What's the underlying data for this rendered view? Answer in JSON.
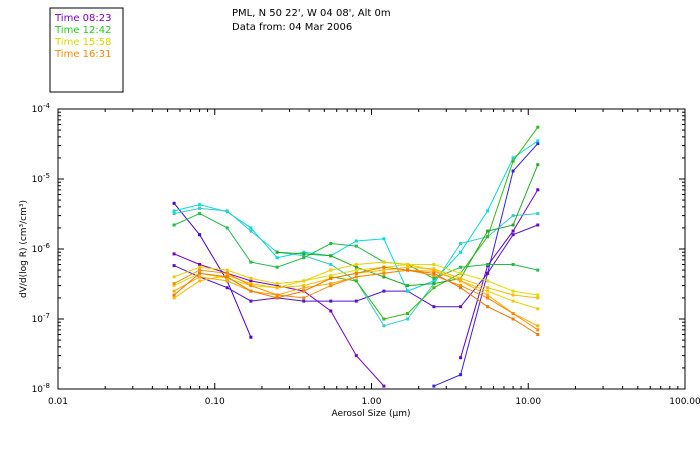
{
  "header": {
    "location": "PML, N 50 22', W 04 08', Alt 0m",
    "date": "Data from: 04 Mar 2006"
  },
  "legend": [
    {
      "label": "Time 08:23",
      "color": "#7a00d0"
    },
    {
      "label": "Time 12:42",
      "color": "#22cc22"
    },
    {
      "label": "Time 15:58",
      "color": "#d8d800"
    },
    {
      "label": "Time 16:31",
      "color": "#ff8800"
    }
  ],
  "chart_data": {
    "type": "line",
    "title": "",
    "xlabel": "Aerosol Size (µm)",
    "ylabel": "dV/d(log R) (cm³/cm³)",
    "x_scale": "log",
    "y_scale": "log",
    "xlim": [
      0.01,
      100
    ],
    "ylim": [
      1e-08,
      0.0001
    ],
    "x_tick_labels": [
      "0.01",
      "0.10",
      "1.00",
      "10.00",
      "100.00"
    ],
    "y_tick_labels": [
      {
        "base": "10",
        "exp": "-8"
      },
      {
        "base": "10",
        "exp": "-7"
      },
      {
        "base": "10",
        "exp": "-6"
      },
      {
        "base": "10",
        "exp": "-5"
      },
      {
        "base": "10",
        "exp": "-4"
      }
    ],
    "x": [
      0.055,
      0.08,
      0.12,
      0.17,
      0.25,
      0.37,
      0.55,
      0.8,
      1.2,
      1.7,
      2.5,
      3.7,
      5.5,
      8.0,
      11.5
    ],
    "series": [
      {
        "name": "s1",
        "color": "#4400cc",
        "values": [
          4.5e-06,
          1.6e-06,
          3.5e-07,
          5.5e-08,
          null,
          null,
          null,
          null,
          null,
          null,
          null,
          null,
          null,
          null,
          null
        ]
      },
      {
        "name": "s2",
        "color": "#3322dd",
        "values": [
          null,
          null,
          null,
          null,
          null,
          null,
          null,
          null,
          null,
          null,
          1.1e-08,
          1.6e-08,
          4.5e-07,
          1.3e-05,
          3.2e-05
        ]
      },
      {
        "name": "s3",
        "color": "#5511cc",
        "values": [
          5.8e-07,
          4e-07,
          2.8e-07,
          1.8e-07,
          2e-07,
          1.8e-07,
          1.8e-07,
          1.8e-07,
          2.5e-07,
          2.5e-07,
          1.5e-07,
          1.5e-07,
          4.5e-07,
          1.6e-06,
          2.2e-06
        ]
      },
      {
        "name": "s4",
        "color": "#7700bb",
        "values": [
          8.5e-07,
          6e-07,
          4.5e-07,
          3.5e-07,
          3e-07,
          2.5e-07,
          1.3e-07,
          3e-08,
          1.1e-08,
          null,
          null,
          null,
          null,
          null,
          null
        ]
      },
      {
        "name": "s5",
        "color": "#6600cc",
        "values": [
          null,
          null,
          null,
          null,
          null,
          null,
          null,
          null,
          null,
          null,
          null,
          2.8e-08,
          5.8e-07,
          1.8e-06,
          7e-06
        ]
      },
      {
        "name": "s6",
        "color": "#00dddd",
        "values": [
          3.5e-06,
          4.3e-06,
          3.4e-06,
          2e-06,
          7.5e-07,
          9e-07,
          8e-07,
          1.3e-06,
          1.4e-06,
          2.5e-07,
          3.5e-07,
          9e-07,
          3.5e-06,
          2e-05,
          3.5e-05
        ]
      },
      {
        "name": "s7",
        "color": "#33cccc",
        "values": [
          3.2e-06,
          3.8e-06,
          3.5e-06,
          1.8e-06,
          9e-07,
          8e-07,
          6e-07,
          3.5e-07,
          8e-08,
          1e-07,
          3.2e-07,
          1.2e-06,
          1.5e-06,
          3e-06,
          3.2e-06
        ]
      },
      {
        "name": "s8",
        "color": "#22bb44",
        "values": [
          2.2e-06,
          3.2e-06,
          2e-06,
          6.5e-07,
          5.5e-07,
          7.5e-07,
          1.2e-06,
          1.1e-06,
          6.5e-07,
          6e-07,
          3.8e-07,
          5.5e-07,
          6e-07,
          6e-07,
          5e-07
        ]
      },
      {
        "name": "s9",
        "color": "#33bb11",
        "values": [
          null,
          null,
          null,
          null,
          null,
          null,
          4e-07,
          3.5e-07,
          1e-07,
          1.2e-07,
          2.8e-07,
          4.5e-07,
          1.5e-06,
          1.8e-05,
          5.5e-05
        ]
      },
      {
        "name": "s10",
        "color": "#22aa22",
        "values": [
          null,
          null,
          null,
          null,
          9e-07,
          8.5e-07,
          8e-07,
          5.5e-07,
          4e-07,
          3e-07,
          3.2e-07,
          3.8e-07,
          1.8e-06,
          2.2e-06,
          1.6e-05
        ]
      },
      {
        "name": "s11",
        "color": "#dddd00",
        "values": [
          3e-07,
          4.5e-07,
          3.8e-07,
          3e-07,
          2.8e-07,
          3.5e-07,
          4.2e-07,
          5e-07,
          5.5e-07,
          6e-07,
          6e-07,
          4.5e-07,
          3.5e-07,
          2.5e-07,
          2.2e-07
        ]
      },
      {
        "name": "s12",
        "color": "#eecc00",
        "values": [
          4e-07,
          5.5e-07,
          5e-07,
          3.8e-07,
          3.2e-07,
          3.5e-07,
          5e-07,
          6e-07,
          6.5e-07,
          6e-07,
          5e-07,
          3.5e-07,
          2.5e-07,
          1.8e-07,
          1.4e-07
        ]
      },
      {
        "name": "s13",
        "color": "#ffbb00",
        "values": [
          2e-07,
          3.5e-07,
          4.2e-07,
          3.2e-07,
          2.8e-07,
          3e-07,
          3.8e-07,
          4.5e-07,
          5e-07,
          5.5e-07,
          5.2e-07,
          3.8e-07,
          2.8e-07,
          2.2e-07,
          2e-07
        ]
      },
      {
        "name": "s14",
        "color": "#ffaa00",
        "values": [
          2.5e-07,
          4e-07,
          3.5e-07,
          2.5e-07,
          2.2e-07,
          2.8e-07,
          3.2e-07,
          4e-07,
          4.5e-07,
          5e-07,
          4.8e-07,
          3.5e-07,
          2.2e-07,
          1.2e-07,
          8e-08
        ]
      },
      {
        "name": "s15",
        "color": "#ff8800",
        "values": [
          3.2e-07,
          5e-07,
          4.5e-07,
          3e-07,
          2.2e-07,
          2e-07,
          3e-07,
          4e-07,
          4.5e-07,
          5e-07,
          4.2e-07,
          3e-07,
          2e-07,
          1.2e-07,
          7e-08
        ]
      },
      {
        "name": "s16",
        "color": "#ee7700",
        "values": [
          2.2e-07,
          4.5e-07,
          4e-07,
          2.5e-07,
          2e-07,
          2.5e-07,
          3.8e-07,
          4.5e-07,
          5.5e-07,
          5e-07,
          4.5e-07,
          2.8e-07,
          1.5e-07,
          1e-07,
          6e-08
        ]
      }
    ]
  }
}
